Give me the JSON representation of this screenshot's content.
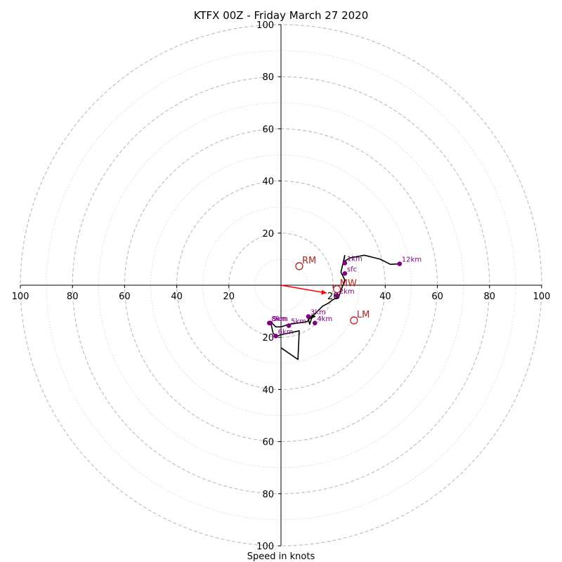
{
  "chart_data": {
    "type": "hodograph",
    "title": "KTFX 00Z - Friday March 27 2020",
    "xlabel": "Speed in knots",
    "ylabel": "",
    "range": [
      -100,
      100
    ],
    "rings": {
      "major_every": 20,
      "minor_every": 10,
      "major_style": "dashed",
      "minor_style": "dotted",
      "color": "#bbbbbb"
    },
    "x_tick_labels": [
      "100",
      "80",
      "60",
      "40",
      "20",
      "20",
      "40",
      "60",
      "80",
      "100"
    ],
    "y_tick_labels_upper": [
      "20",
      "40",
      "60",
      "80",
      "100"
    ],
    "y_tick_labels_lower": [
      "20",
      "40",
      "60",
      "80",
      "100"
    ],
    "tick_values": [
      -100,
      -80,
      -60,
      -40,
      -20,
      20,
      40,
      60,
      80,
      100
    ],
    "hodograph_trace": {
      "color": "#000000",
      "u": [
        24.5,
        24,
        26.5,
        32,
        38,
        42,
        45.5
      ],
      "v": [
        11.5,
        9,
        10.5,
        11.5,
        10,
        8,
        8.2
      ]
    },
    "hodograph_lower": {
      "color": "#000000",
      "u": [
        24.5,
        23,
        24.5,
        23,
        22,
        21,
        20,
        18,
        16,
        12,
        11,
        10.5,
        13,
        12,
        10,
        3,
        0,
        -2,
        -4,
        -3,
        -1.5,
        0,
        7,
        6.5,
        0
      ],
      "v": [
        11.5,
        5,
        2,
        -2,
        -5,
        -5,
        -5.5,
        -7,
        -8,
        -12,
        -15,
        -13,
        -12,
        -11.5,
        -14,
        -15,
        -16,
        -16,
        -14,
        -18.5,
        -19.5,
        -19,
        -17.5,
        -28.5,
        -24
      ]
    },
    "height_markers": {
      "color": "#800080",
      "points": [
        {
          "label": "sfc",
          "u": 24.5,
          "v": 4.5
        },
        {
          "label": "1km",
          "u": 24.5,
          "v": 8.5
        },
        {
          "label": "12km",
          "u": 45.5,
          "v": 8.2
        },
        {
          "label": "2km",
          "u": 21.5,
          "v": -4
        },
        {
          "label": "3km",
          "u": 10.5,
          "v": -12
        },
        {
          "label": "4km",
          "u": 13,
          "v": -14.5
        },
        {
          "label": "5km",
          "u": 3,
          "v": -15.5
        },
        {
          "label": "8km",
          "u": -4.5,
          "v": -14.5
        },
        {
          "label": "9km",
          "u": -4,
          "v": -14.5
        },
        {
          "label": "6km",
          "u": -2,
          "v": -19.5
        }
      ]
    },
    "storm_motions": {
      "color": "#b22222",
      "points": [
        {
          "label": "RM",
          "u": 7,
          "v": 7.3
        },
        {
          "label": "LM",
          "u": 28,
          "v": -13.5
        },
        {
          "label": "MW",
          "u": 21.5,
          "v": -1.5
        }
      ]
    },
    "bunkers_vector": {
      "color": "#ff0000",
      "u": 17.5,
      "v": -3
    }
  }
}
